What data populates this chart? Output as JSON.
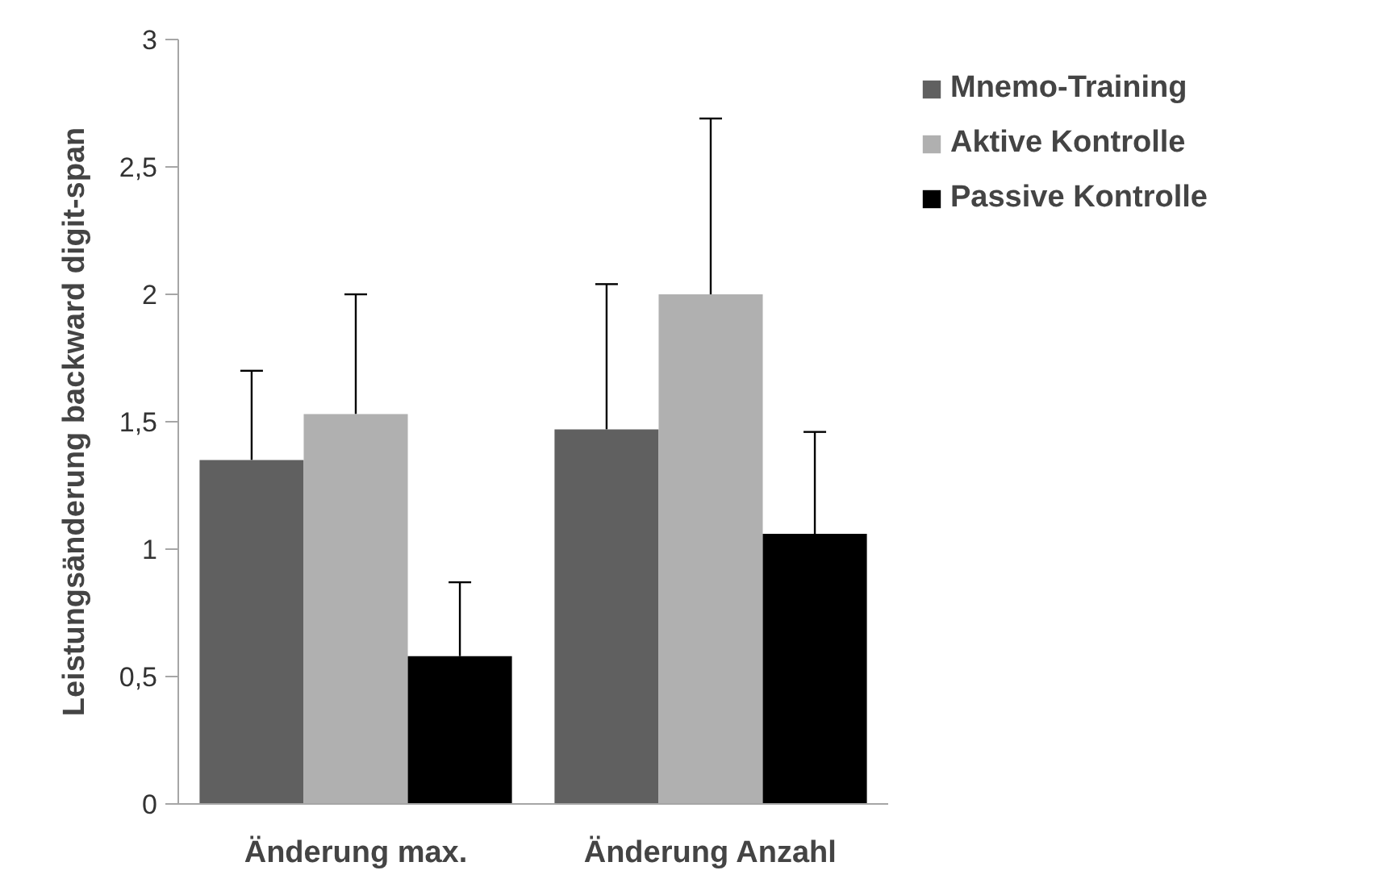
{
  "chart_data": {
    "type": "bar",
    "ylabel": "Leistungsänderung backward digit-span",
    "categories": [
      "Änderung max.",
      "Änderung Anzahl"
    ],
    "series": [
      {
        "name": "Mnemo-Training",
        "color": "#606060",
        "values": [
          1.35,
          1.47
        ],
        "errors": [
          [
            1.35,
            1.7
          ],
          [
            1.47,
            2.04
          ]
        ]
      },
      {
        "name": "Aktive Kontrolle",
        "color": "#b0b0b0",
        "values": [
          1.53,
          2.0
        ],
        "errors": [
          [
            1.53,
            2.0
          ],
          [
            2.0,
            2.69
          ]
        ]
      },
      {
        "name": "Passive Kontrolle",
        "color": "#000000",
        "values": [
          0.58,
          1.06
        ],
        "errors": [
          [
            0.58,
            0.87
          ],
          [
            1.06,
            1.46
          ]
        ]
      }
    ],
    "ylim": [
      0,
      3
    ],
    "yticks": [
      0,
      {
        "value": 0.5,
        "label": "0,5"
      },
      1,
      {
        "value": 1.5,
        "label": "1,5"
      },
      2,
      {
        "value": 2.5,
        "label": "2,5"
      },
      3
    ],
    "grid": false,
    "legend": "right"
  }
}
